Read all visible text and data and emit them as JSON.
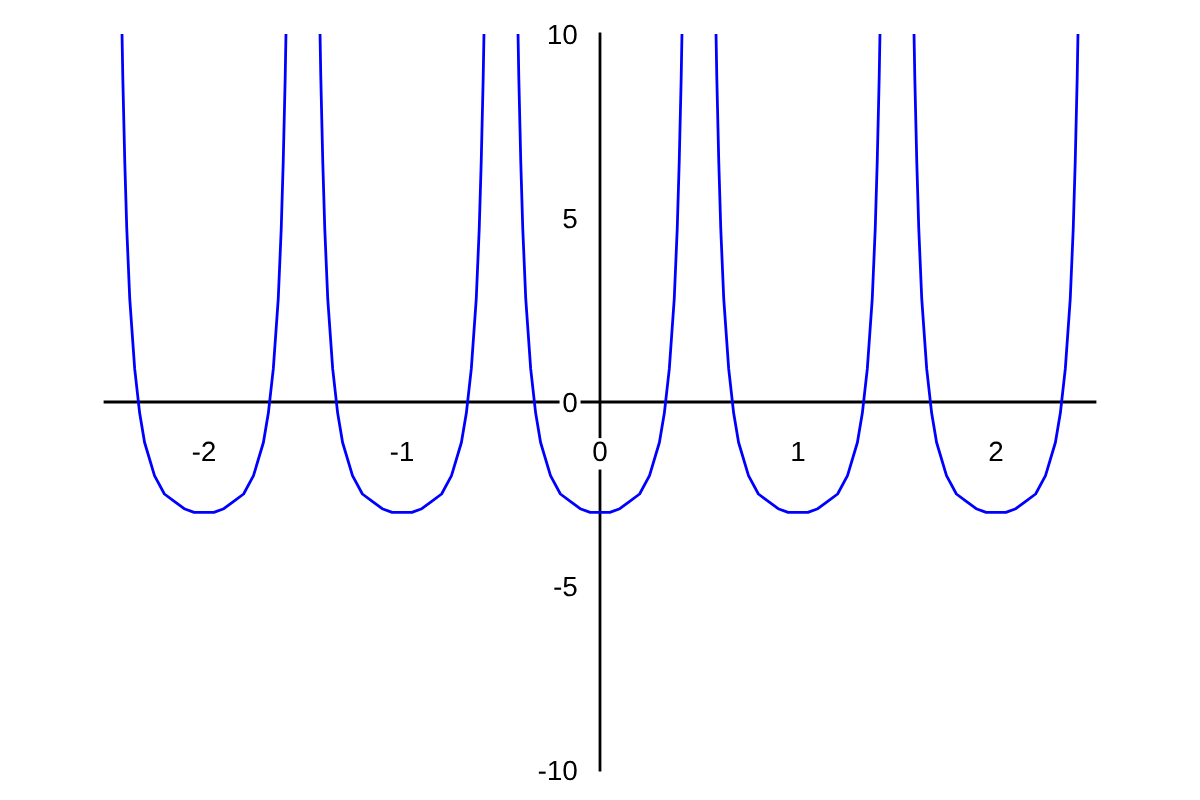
{
  "chart_data": {
    "type": "line",
    "color": "#0000ff",
    "line_style": "solid",
    "x": [
      -2.414,
      -2.41,
      -2.4,
      -2.39,
      -2.375,
      -2.35,
      -2.325,
      -2.3,
      -2.25,
      -2.2,
      -2.15,
      -2.1,
      -2.05,
      -2,
      -1.95,
      -1.9,
      -1.85,
      -1.8,
      -1.75,
      -1.7,
      -1.675,
      -1.65,
      -1.625,
      -1.61,
      -1.6,
      -1.59,
      -1.586,
      -1.5,
      -1.414,
      -1.41,
      -1.4,
      -1.39,
      -1.375,
      -1.35,
      -1.325,
      -1.3,
      -1.25,
      -1.2,
      -1.15,
      -1.1,
      -1.05,
      -1,
      -0.95,
      -0.9,
      -0.85,
      -0.8,
      -0.75,
      -0.7,
      -0.675,
      -0.65,
      -0.625,
      -0.61,
      -0.6,
      -0.59,
      -0.586,
      -0.5,
      -0.414,
      -0.41,
      -0.4,
      -0.39,
      -0.375,
      -0.35,
      -0.325,
      -0.3,
      -0.25,
      -0.2,
      -0.15,
      -0.1,
      -0.05,
      0,
      0.05,
      0.1,
      0.15,
      0.2,
      0.25,
      0.3,
      0.325,
      0.35,
      0.375,
      0.39,
      0.4,
      0.41,
      0.414,
      0.5,
      0.586,
      0.59,
      0.6,
      0.61,
      0.625,
      0.65,
      0.675,
      0.7,
      0.75,
      0.8,
      0.85,
      0.9,
      0.95,
      1,
      1.05,
      1.1,
      1.15,
      1.2,
      1.25,
      1.3,
      1.325,
      1.35,
      1.375,
      1.39,
      1.4,
      1.41,
      1.414,
      1.5,
      1.586,
      1.59,
      1.6,
      1.61,
      1.625,
      1.65,
      1.675,
      1.7,
      1.75,
      1.8,
      1.85,
      1.9,
      1.95,
      2,
      2.05,
      2.1,
      2.15,
      2.2,
      2.25,
      2.3,
      2.325,
      2.35,
      2.375,
      2.39,
      2.4,
      2.41,
      2.414
    ],
    "values": [
      10,
      8.8,
      6.5,
      4.7,
      2.8,
      0.9,
      -0.3,
      -1.1,
      -2.0,
      -2.5,
      -2.7,
      -2.9,
      -3.0,
      -3.0,
      -3.0,
      -2.9,
      -2.7,
      -2.5,
      -2.0,
      -1.1,
      -0.3,
      0.9,
      2.8,
      4.7,
      6.5,
      8.8,
      10,
      null,
      10,
      8.8,
      6.5,
      4.7,
      2.8,
      0.9,
      -0.3,
      -1.1,
      -2.0,
      -2.5,
      -2.7,
      -2.9,
      -3.0,
      -3.0,
      -3.0,
      -2.9,
      -2.7,
      -2.5,
      -2.0,
      -1.1,
      -0.3,
      0.9,
      2.8,
      4.7,
      6.5,
      8.8,
      10,
      null,
      10,
      8.8,
      6.5,
      4.7,
      2.8,
      0.9,
      -0.3,
      -1.1,
      -2.0,
      -2.5,
      -2.7,
      -2.9,
      -3.0,
      -3.0,
      -3.0,
      -2.9,
      -2.7,
      -2.5,
      -2.0,
      -1.1,
      -0.3,
      0.9,
      2.8,
      4.7,
      6.5,
      8.8,
      10,
      null,
      10,
      8.8,
      6.5,
      4.7,
      2.8,
      0.9,
      -0.3,
      -1.1,
      -2.0,
      -2.5,
      -2.7,
      -2.9,
      -3.0,
      -3.0,
      -3.0,
      -2.9,
      -2.7,
      -2.5,
      -2.0,
      -1.1,
      -0.3,
      0.9,
      2.8,
      4.7,
      6.5,
      8.8,
      10,
      null,
      10,
      8.8,
      6.5,
      4.7,
      2.8,
      0.9,
      -0.3,
      -1.1,
      -2.0,
      -2.5,
      -2.7,
      -2.9,
      -3.0,
      -3.0,
      -3.0,
      -2.9,
      -2.7,
      -2.5,
      -2.0,
      -1.1,
      -0.3,
      0.9,
      2.8,
      4.7,
      6.5,
      8.8,
      10
    ],
    "xlim": [
      -2.5,
      2.5
    ],
    "ylim": [
      -10,
      10
    ],
    "xticks": [
      -2,
      -1,
      0,
      1,
      2
    ],
    "yticks": [
      -10,
      -5,
      0,
      5,
      10
    ]
  }
}
